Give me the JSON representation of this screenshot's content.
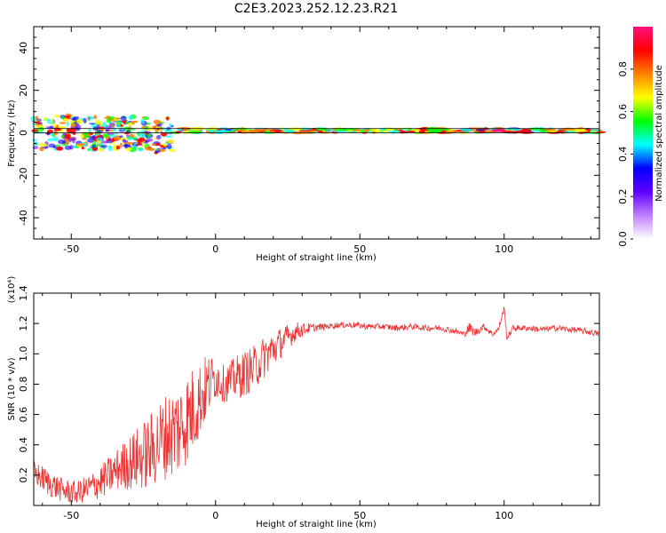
{
  "chart_data": [
    {
      "type": "heatmap",
      "title": "C2E3.2023.252.12.23.R21",
      "xlabel": "Height of straight line (km)",
      "ylabel": "Frequency (Hz)",
      "xlim": [
        -63,
        133
      ],
      "ylim": [
        -50,
        50
      ],
      "xticks": [
        -50,
        0,
        50,
        100
      ],
      "yticks": [
        -40,
        -20,
        0,
        20,
        40
      ],
      "colorbar": {
        "label": "Normalized spectral amplitude",
        "range": [
          0,
          1
        ],
        "ticks": [
          "0.0",
          "0.2",
          "0.4",
          "0.6",
          "0.8"
        ],
        "colormap": [
          "#ffffff",
          "#c080ff",
          "#6000ff",
          "#0000ff",
          "#00ffff",
          "#00ff00",
          "#ffff00",
          "#ff8000",
          "#ff0000",
          "#ff1080"
        ]
      },
      "reference_lines": [
        0,
        2
      ],
      "regions": [
        {
          "x_range": [
            -63,
            -15
          ],
          "note": "broad scatter",
          "freq_center": 0,
          "freq_spread": 8
        },
        {
          "x_range": [
            -15,
            133
          ],
          "note": "narrow band",
          "freq_center": 1,
          "freq_spread": 2
        }
      ]
    },
    {
      "type": "line",
      "title": "",
      "xlabel": "Height of straight line (km)",
      "ylabel": "SNR (10 * v/v)",
      "yscale_label": "(x10⁴)",
      "xlim": [
        -63,
        133
      ],
      "ylim": [
        0,
        1.4
      ],
      "xticks": [
        -50,
        0,
        50,
        100
      ],
      "yticks": [
        "0.2",
        "0.4",
        "0.6",
        "0.8",
        "1.0",
        "1.2",
        "1.4"
      ],
      "color": "#ee3333",
      "series": [
        {
          "name": "SNR",
          "x": [
            -63,
            -58,
            -53,
            -48,
            -43,
            -38,
            -33,
            -28,
            -23,
            -18,
            -13,
            -8,
            -3,
            0,
            3,
            8,
            13,
            18,
            23,
            28,
            33,
            38,
            43,
            48,
            53,
            58,
            63,
            68,
            73,
            78,
            83,
            86,
            88,
            90,
            93,
            96,
            98,
            100,
            101,
            103,
            108,
            113,
            118,
            123,
            128,
            133
          ],
          "values": [
            0.22,
            0.15,
            0.1,
            0.08,
            0.12,
            0.18,
            0.25,
            0.3,
            0.35,
            0.45,
            0.5,
            0.62,
            0.78,
            0.85,
            0.8,
            0.85,
            0.9,
            1.0,
            1.08,
            1.15,
            1.17,
            1.18,
            1.19,
            1.19,
            1.18,
            1.18,
            1.17,
            1.18,
            1.17,
            1.17,
            1.15,
            1.13,
            1.17,
            1.14,
            1.18,
            1.13,
            1.16,
            1.3,
            1.1,
            1.17,
            1.17,
            1.16,
            1.17,
            1.16,
            1.15,
            1.13
          ],
          "noise": [
            0.08,
            0.09,
            0.08,
            0.08,
            0.1,
            0.12,
            0.15,
            0.2,
            0.25,
            0.28,
            0.32,
            0.3,
            0.22,
            0.15,
            0.12,
            0.15,
            0.15,
            0.14,
            0.1,
            0.06,
            0.03,
            0.02,
            0.02,
            0.02,
            0.02,
            0.02,
            0.02,
            0.02,
            0.02,
            0.02,
            0.02,
            0.02,
            0.04,
            0.03,
            0.02,
            0.02,
            0.02,
            0.02,
            0.02,
            0.02,
            0.02,
            0.02,
            0.02,
            0.02,
            0.02,
            0.02
          ]
        }
      ]
    }
  ]
}
